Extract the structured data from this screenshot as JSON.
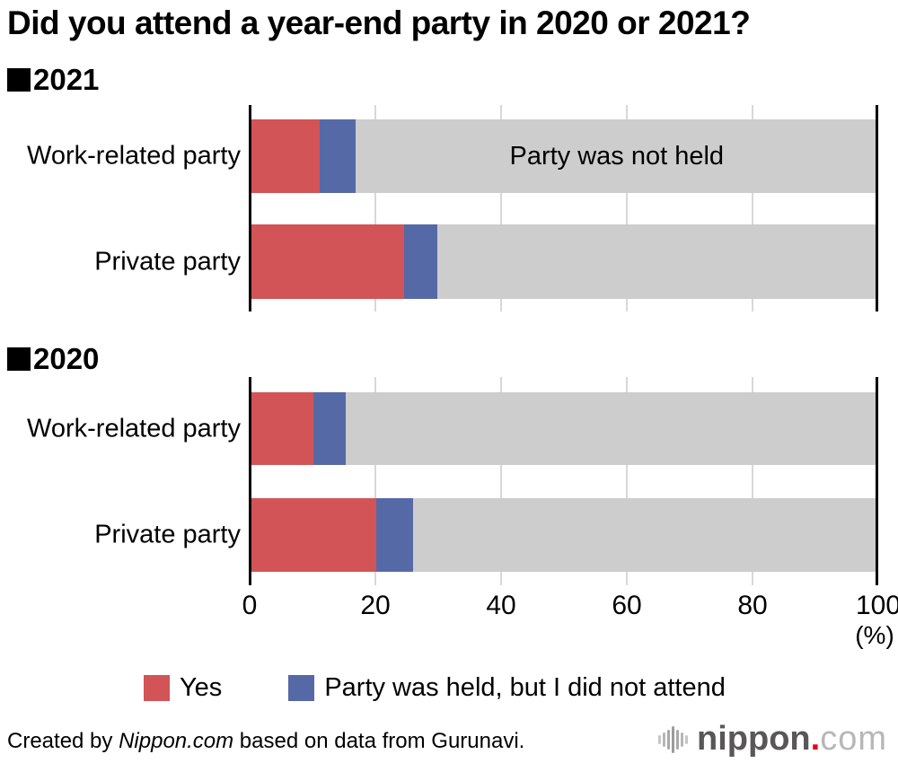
{
  "title": "Did you attend a year-end party in 2020 or 2021?",
  "annotation": "Party was not held",
  "axis": {
    "unit_label": "(%)"
  },
  "legend": [
    {
      "label": "Yes",
      "color": "#d25456"
    },
    {
      "label": "Party was held, but I did not attend",
      "color": "#5669a7"
    }
  ],
  "footer": {
    "text_before": "Created by ",
    "source_name": "Nippon.com",
    "text_after": " based on data from Gurunavi."
  },
  "logo": {
    "name": "nippon",
    "dot": ".",
    "tld": "com",
    "dot_color": "#e60012"
  },
  "chart_data": {
    "type": "bar",
    "orientation": "horizontal",
    "stacked": true,
    "xlim": [
      0,
      100
    ],
    "x_ticks": [
      0,
      20,
      40,
      60,
      80,
      100
    ],
    "xlabel": "(%)",
    "grid": "vertical-light-gray",
    "legend_position": "bottom",
    "series_names": [
      "Yes",
      "Party was held, but I did not attend",
      "Party was not held"
    ],
    "colors": {
      "yes": "#d25456",
      "held_not_attend": "#5669a7",
      "not_held": "#cdcdcd"
    },
    "groups": [
      {
        "year": "2021",
        "rows": [
          {
            "category": "Work-related party",
            "yes": 11.1,
            "held_not_attend": 5.7,
            "not_held": 83.2
          },
          {
            "category": "Private party",
            "yes": 24.5,
            "held_not_attend": 5.4,
            "not_held": 70.1
          }
        ]
      },
      {
        "year": "2020",
        "rows": [
          {
            "category": "Work-related party",
            "yes": 10.2,
            "held_not_attend": 5.1,
            "not_held": 84.7
          },
          {
            "category": "Private party",
            "yes": 20.2,
            "held_not_attend": 5.8,
            "not_held": 74.0
          }
        ]
      }
    ]
  }
}
